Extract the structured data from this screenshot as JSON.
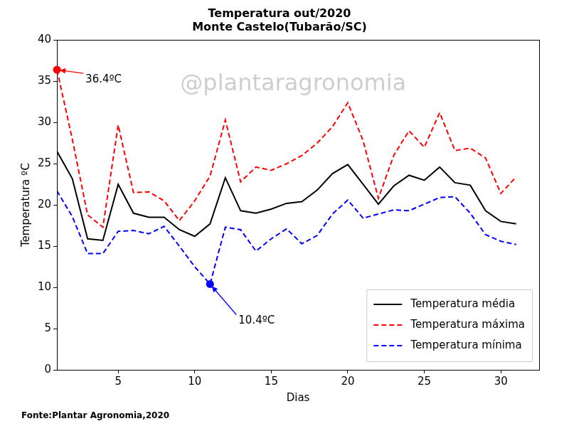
{
  "chart_data": {
    "type": "line",
    "title": "Temperatura out/2020\nMonte Castelo(Tubarão/SC)",
    "x_label": "Dias",
    "y_label": "Temperatura ºC",
    "x": [
      1,
      2,
      3,
      4,
      5,
      6,
      7,
      8,
      9,
      10,
      11,
      12,
      13,
      14,
      15,
      16,
      17,
      18,
      19,
      20,
      21,
      22,
      23,
      24,
      25,
      26,
      27,
      28,
      29,
      30,
      31
    ],
    "series": [
      {
        "name": "Temperatura média",
        "color": "#000000",
        "line_style": "solid",
        "values": [
          26.5,
          23.2,
          15.9,
          15.7,
          22.5,
          19.0,
          18.5,
          18.5,
          17.0,
          16.2,
          17.7,
          23.3,
          19.3,
          19.0,
          19.5,
          20.2,
          20.4,
          21.8,
          23.8,
          24.9,
          22.5,
          20.1,
          22.3,
          23.6,
          23.0,
          24.6,
          22.7,
          22.4,
          19.3,
          18.0,
          17.7
        ]
      },
      {
        "name": "Temperatura máxima",
        "color": "#ff0000",
        "line_style": "dashed",
        "values": [
          36.4,
          28.0,
          18.8,
          17.3,
          29.7,
          21.5,
          21.6,
          20.5,
          18.1,
          20.5,
          23.5,
          30.3,
          22.8,
          24.6,
          24.2,
          25.0,
          26.0,
          27.5,
          29.5,
          32.4,
          27.8,
          20.8,
          26.0,
          29.0,
          27.0,
          31.2,
          26.6,
          26.9,
          25.7,
          21.4,
          23.4
        ]
      },
      {
        "name": "Temperatura mínima",
        "color": "#0000ff",
        "line_style": "dashed",
        "values": [
          21.7,
          18.6,
          14.1,
          14.1,
          16.8,
          16.9,
          16.5,
          17.4,
          15.0,
          12.5,
          10.4,
          17.3,
          17.0,
          14.4,
          15.9,
          17.1,
          15.3,
          16.3,
          18.9,
          20.6,
          18.4,
          18.9,
          19.4,
          19.3,
          20.1,
          20.9,
          21.0,
          19.0,
          16.4,
          15.6,
          15.2
        ]
      }
    ],
    "xlim": [
      1,
      32.5
    ],
    "xticks": [
      5,
      10,
      15,
      20,
      25,
      30
    ],
    "ylim": [
      0,
      40
    ],
    "yticks": [
      0,
      5,
      10,
      15,
      20,
      25,
      30,
      35,
      40
    ],
    "grid": false,
    "legend": "lower right",
    "annotations": [
      {
        "text": "36.4ºC",
        "x": 1,
        "y": 36.4,
        "color": "#ff0000"
      },
      {
        "text": "10.4ºC",
        "x": 11,
        "y": 10.4,
        "color": "#0000ff"
      }
    ],
    "watermark": "@plantaragronomia",
    "source": "Fonte:Plantar Agronomia,2020"
  }
}
